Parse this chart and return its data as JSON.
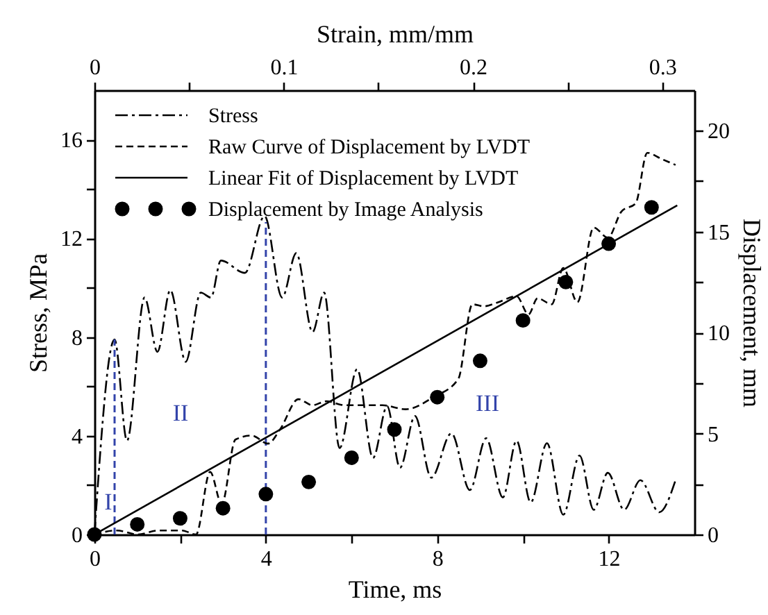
{
  "chart_data": {
    "type": "line",
    "xlabel": "Time, ms",
    "ylabel": "Stress, MPa",
    "y2label": "Displacement, mm",
    "x2label": "Strain, mm/mm",
    "xlim": [
      0,
      14
    ],
    "xticks": [
      0,
      {
        "value": 2,
        "label": null
      },
      4,
      {
        "value": 6,
        "label": null
      },
      8,
      {
        "value": 10,
        "label": null
      },
      12
    ],
    "ylim": [
      0,
      18
    ],
    "yticks": [
      0,
      {
        "value": 2,
        "label": null
      },
      4,
      {
        "value": 6,
        "label": null
      },
      8,
      {
        "value": 10,
        "label": null
      },
      12,
      {
        "value": 14,
        "label": null
      },
      16
    ],
    "y2lim": [
      0,
      22
    ],
    "y2ticks": [
      0,
      {
        "value": 2.5,
        "label": null
      },
      5,
      {
        "value": 7.5,
        "label": null
      },
      10,
      {
        "value": 12.5,
        "label": null
      },
      15,
      {
        "value": 17.5,
        "label": null
      },
      20
    ],
    "x2lim": [
      0,
      0.317
    ],
    "x2ticks": [
      0,
      {
        "value": 0.05,
        "label": null
      },
      0.1,
      {
        "value": 0.15,
        "label": null
      },
      0.2,
      {
        "value": 0.25,
        "label": null
      },
      0.3
    ],
    "grid": false,
    "legend": "top left",
    "series": [
      {
        "name": "Stress",
        "line_style": "dashdot",
        "color": "#000000",
        "x": [
          0,
          0.47,
          0.76,
          1.17,
          1.47,
          1.77,
          2.13,
          2.48,
          2.72,
          2.95,
          3.51,
          3.97,
          4.38,
          4.71,
          5.09,
          5.36,
          5.72,
          6.13,
          6.5,
          6.83,
          7.13,
          7.48,
          7.86,
          8.33,
          8.76,
          9.14,
          9.53,
          9.85,
          10.18,
          10.56,
          10.94,
          11.32,
          11.65,
          11.98,
          12.36,
          12.74,
          13.18,
          13.56
        ],
        "values": [
          0,
          7.9,
          3.8,
          9.6,
          7.4,
          9.9,
          7.0,
          9.8,
          9.6,
          11.1,
          10.6,
          12.9,
          9.6,
          11.4,
          8.2,
          9.8,
          3.5,
          6.7,
          3.1,
          5.2,
          2.7,
          4.8,
          2.3,
          4.1,
          1.8,
          3.9,
          1.5,
          3.8,
          1.3,
          3.7,
          0.8,
          3.2,
          1.0,
          2.5,
          1.0,
          2.2,
          0.9,
          2.2
        ]
      },
      {
        "name": "Raw Curve of Displacement by LVDT",
        "line_style": "dashed",
        "axis": "y2",
        "color": "#000000",
        "x": [
          0,
          0.52,
          1.01,
          1.5,
          2.04,
          2.37,
          2.7,
          2.97,
          3.29,
          3.67,
          4.05,
          4.33,
          4.76,
          5.09,
          5.41,
          5.85,
          6.72,
          7.26,
          7.91,
          8.49,
          8.82,
          9.09,
          9.42,
          9.85,
          10.13,
          10.34,
          10.67,
          10.94,
          11.27,
          11.65,
          11.98,
          12.3,
          12.63,
          12.9,
          13.23,
          13.56
        ],
        "values": [
          0,
          0.2,
          0,
          0.2,
          0.2,
          0,
          3.1,
          1.5,
          4.7,
          4.9,
          4.5,
          5.2,
          6.7,
          6.4,
          6.6,
          6.4,
          6.4,
          6.2,
          6.8,
          7.7,
          11.4,
          11.3,
          11.5,
          11.8,
          10.9,
          11.7,
          11.4,
          13.2,
          11.5,
          15.2,
          14.7,
          16.0,
          16.4,
          18.9,
          18.6,
          18.3
        ]
      },
      {
        "name": "Linear Fit of Displacement by LVDT",
        "line_style": "solid",
        "axis": "y2",
        "color": "#000000",
        "x": [
          0,
          13.6
        ],
        "values": [
          0,
          16.3
        ]
      },
      {
        "name": "Displacement by Image Analysis",
        "type": "scatter",
        "marker": "circle",
        "axis": "y2",
        "color": "#000000",
        "x": [
          0,
          1,
          2,
          3,
          4,
          5,
          6,
          7,
          8,
          9,
          10,
          11,
          12,
          13
        ],
        "values": [
          0,
          0.5,
          0.8,
          1.3,
          2.0,
          2.6,
          3.8,
          5.2,
          6.8,
          8.6,
          10.6,
          12.5,
          14.4,
          16.2
        ]
      }
    ],
    "ref_lines": [
      {
        "axis": "x",
        "value": 0.47,
        "label": null,
        "color": "#3344aa",
        "line_style": "dashed"
      },
      {
        "axis": "x",
        "value": 4,
        "label": null,
        "color": "#3344aa",
        "line_style": "dashed"
      }
    ],
    "annotations": [
      "I",
      "II",
      "III"
    ]
  }
}
